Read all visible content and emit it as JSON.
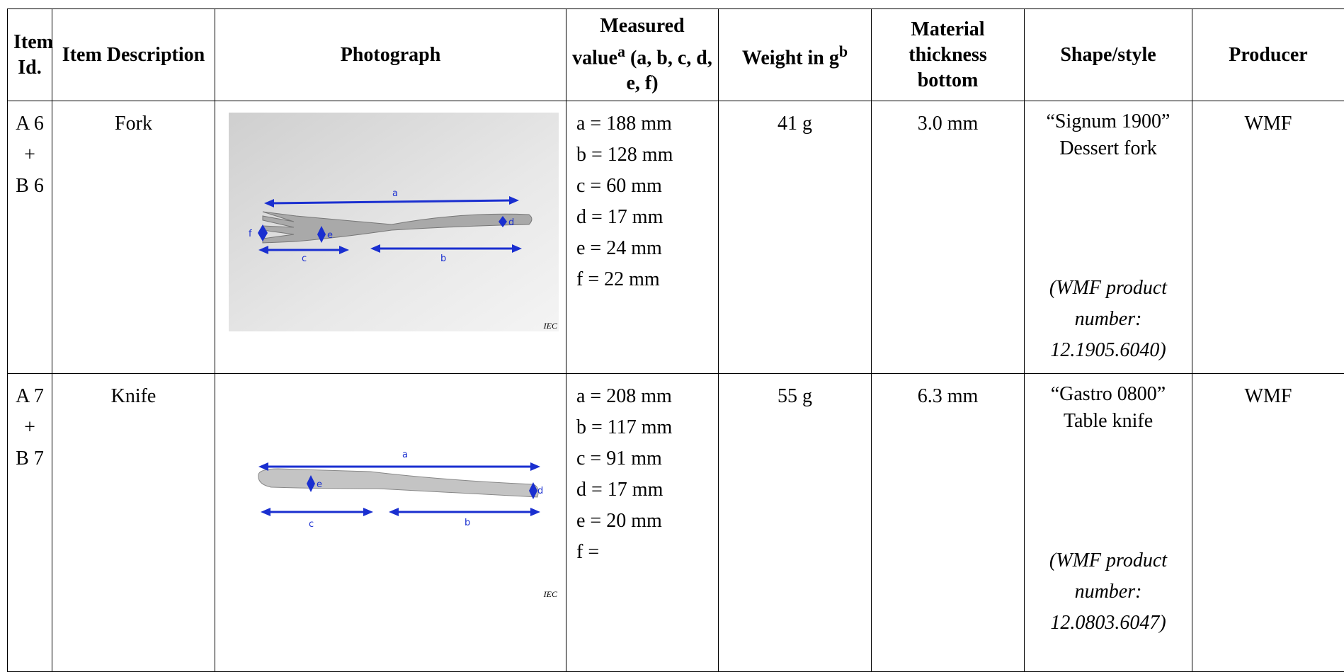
{
  "header": {
    "item_id": "Item Id.",
    "description": "Item Description",
    "photograph": "Photograph",
    "measured": {
      "text": "Measured value",
      "sup": "a",
      "rest": " (a, b, c, d, e, f)"
    },
    "weight": {
      "text": "Weight in g",
      "sup": "b"
    },
    "thickness": "Material thickness bottom",
    "shape": "Shape/style",
    "producer": "Producer"
  },
  "rows": [
    {
      "id": [
        "A 6",
        "+",
        "B 6"
      ],
      "description": "Fork",
      "photo": {
        "labels": [
          "a",
          "b",
          "c",
          "d",
          "e",
          "f"
        ],
        "credit": "IEC"
      },
      "measured": [
        "a = 188 mm",
        "b = 128 mm",
        "c = 60 mm",
        "d = 17 mm",
        "e = 24 mm",
        "f = 22 mm"
      ],
      "weight": "41 g",
      "thickness": "3.0 mm",
      "shape": "“Signum 1900” Dessert fork",
      "product_number": "(WMF product number: 12.1905.6040)",
      "producer": "WMF"
    },
    {
      "id": [
        "A 7",
        "+",
        "B 7"
      ],
      "description": "Knife",
      "photo": {
        "labels": [
          "a",
          "b",
          "c",
          "d",
          "e"
        ],
        "credit": "IEC"
      },
      "measured": [
        "a = 208 mm",
        "b = 117 mm",
        "c = 91 mm",
        "d = 17 mm",
        "e = 20 mm",
        "f ="
      ],
      "weight": "55 g",
      "thickness": "6.3 mm",
      "shape": "“Gastro 0800” Table knife",
      "product_number": "(WMF product number: 12.0803.6047)",
      "producer": "WMF"
    }
  ]
}
